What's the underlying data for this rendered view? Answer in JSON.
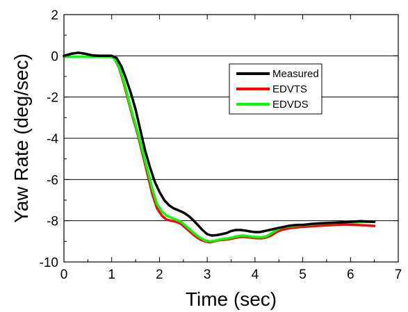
{
  "chart_data": {
    "type": "line",
    "xlabel": "Time (sec)",
    "ylabel": "Yaw Rate (deg/sec)",
    "xlim": [
      0,
      7
    ],
    "ylim": [
      -10,
      2
    ],
    "xticks": [
      0,
      1,
      2,
      3,
      4,
      5,
      6,
      7
    ],
    "yticks": [
      2,
      0,
      -2,
      -4,
      -6,
      -8,
      -10
    ],
    "grid": "horizontal lines at -8, -6, -4, -2, 0",
    "legend_position": "upper-right",
    "series": [
      {
        "name": "Measured",
        "color": "#000000",
        "x": [
          0,
          0.15,
          0.3,
          0.45,
          0.6,
          0.75,
          0.9,
          1.0,
          1.1,
          1.2,
          1.3,
          1.4,
          1.5,
          1.6,
          1.7,
          1.8,
          1.9,
          2.0,
          2.1,
          2.2,
          2.3,
          2.4,
          2.5,
          2.6,
          2.7,
          2.8,
          2.9,
          3.0,
          3.1,
          3.2,
          3.3,
          3.4,
          3.5,
          3.6,
          3.7,
          3.8,
          3.9,
          4.0,
          4.1,
          4.2,
          4.3,
          4.4,
          4.5,
          4.6,
          4.7,
          4.8,
          4.9,
          5.0,
          5.2,
          5.4,
          5.6,
          5.8,
          6.0,
          6.2,
          6.5
        ],
        "y": [
          0,
          0.1,
          0.15,
          0.1,
          0.02,
          0,
          0.0,
          0.0,
          -0.1,
          -0.5,
          -1.1,
          -1.8,
          -2.6,
          -3.6,
          -4.6,
          -5.4,
          -6.1,
          -6.6,
          -7.0,
          -7.25,
          -7.4,
          -7.5,
          -7.6,
          -7.75,
          -7.95,
          -8.2,
          -8.45,
          -8.65,
          -8.72,
          -8.7,
          -8.65,
          -8.6,
          -8.5,
          -8.45,
          -8.45,
          -8.48,
          -8.52,
          -8.55,
          -8.55,
          -8.5,
          -8.45,
          -8.4,
          -8.35,
          -8.3,
          -8.25,
          -8.22,
          -8.2,
          -8.2,
          -8.15,
          -8.12,
          -8.1,
          -8.08,
          -8.05,
          -8.02,
          -8.05
        ]
      },
      {
        "name": "EDVTS",
        "color": "#ff0000",
        "x": [
          0,
          0.2,
          0.4,
          0.6,
          0.8,
          0.95,
          1.05,
          1.15,
          1.25,
          1.35,
          1.45,
          1.55,
          1.65,
          1.75,
          1.85,
          1.95,
          2.05,
          2.15,
          2.25,
          2.35,
          2.45,
          2.55,
          2.65,
          2.75,
          2.85,
          2.95,
          3.05,
          3.15,
          3.25,
          3.35,
          3.45,
          3.55,
          3.65,
          3.75,
          3.85,
          3.95,
          4.05,
          4.15,
          4.25,
          4.35,
          4.45,
          4.55,
          4.65,
          4.75,
          4.85,
          4.95,
          5.1,
          5.3,
          5.5,
          5.7,
          5.9,
          6.1,
          6.3,
          6.5
        ],
        "y": [
          -0.05,
          -0.05,
          -0.05,
          -0.05,
          -0.05,
          -0.05,
          -0.1,
          -0.55,
          -1.3,
          -2.2,
          -3.05,
          -3.85,
          -4.8,
          -5.75,
          -6.7,
          -7.4,
          -7.75,
          -7.95,
          -8.0,
          -8.05,
          -8.15,
          -8.35,
          -8.55,
          -8.75,
          -8.9,
          -9.0,
          -9.05,
          -9.0,
          -8.95,
          -8.92,
          -8.9,
          -8.85,
          -8.8,
          -8.78,
          -8.8,
          -8.83,
          -8.85,
          -8.85,
          -8.8,
          -8.7,
          -8.55,
          -8.45,
          -8.4,
          -8.35,
          -8.33,
          -8.3,
          -8.28,
          -8.25,
          -8.22,
          -8.2,
          -8.18,
          -8.2,
          -8.22,
          -8.25
        ]
      },
      {
        "name": "EDVDS",
        "color": "#00ff00",
        "x": [
          0,
          0.2,
          0.4,
          0.6,
          0.8,
          0.95,
          1.05,
          1.15,
          1.25,
          1.35,
          1.45,
          1.55,
          1.65,
          1.75,
          1.85,
          1.95,
          2.05,
          2.15,
          2.25,
          2.35,
          2.45,
          2.55,
          2.65,
          2.75,
          2.85,
          2.95,
          3.05,
          3.15,
          3.25,
          3.35,
          3.45,
          3.55,
          3.65,
          3.75,
          3.85,
          3.95,
          4.05,
          4.15,
          4.25,
          4.35,
          4.45,
          4.55,
          4.65,
          4.75,
          4.85,
          4.95,
          5.1,
          5.3,
          5.5,
          5.7,
          5.9,
          6.1,
          6.3,
          6.5
        ],
        "y": [
          -0.05,
          -0.05,
          -0.05,
          -0.05,
          -0.05,
          -0.05,
          -0.1,
          -0.5,
          -1.2,
          -2.1,
          -2.95,
          -3.75,
          -4.65,
          -5.55,
          -6.45,
          -7.2,
          -7.55,
          -7.75,
          -7.85,
          -7.95,
          -8.05,
          -8.25,
          -8.45,
          -8.65,
          -8.82,
          -8.95,
          -9.0,
          -8.98,
          -8.92,
          -8.88,
          -8.85,
          -8.8,
          -8.75,
          -8.72,
          -8.75,
          -8.78,
          -8.8,
          -8.8,
          -8.75,
          -8.6,
          -8.45,
          -8.35,
          -8.3,
          -8.27,
          -8.25,
          -8.22,
          -8.2,
          -8.15,
          -8.12,
          -8.1,
          -8.05,
          -8.08,
          -8.05,
          -8.05
        ]
      }
    ]
  }
}
